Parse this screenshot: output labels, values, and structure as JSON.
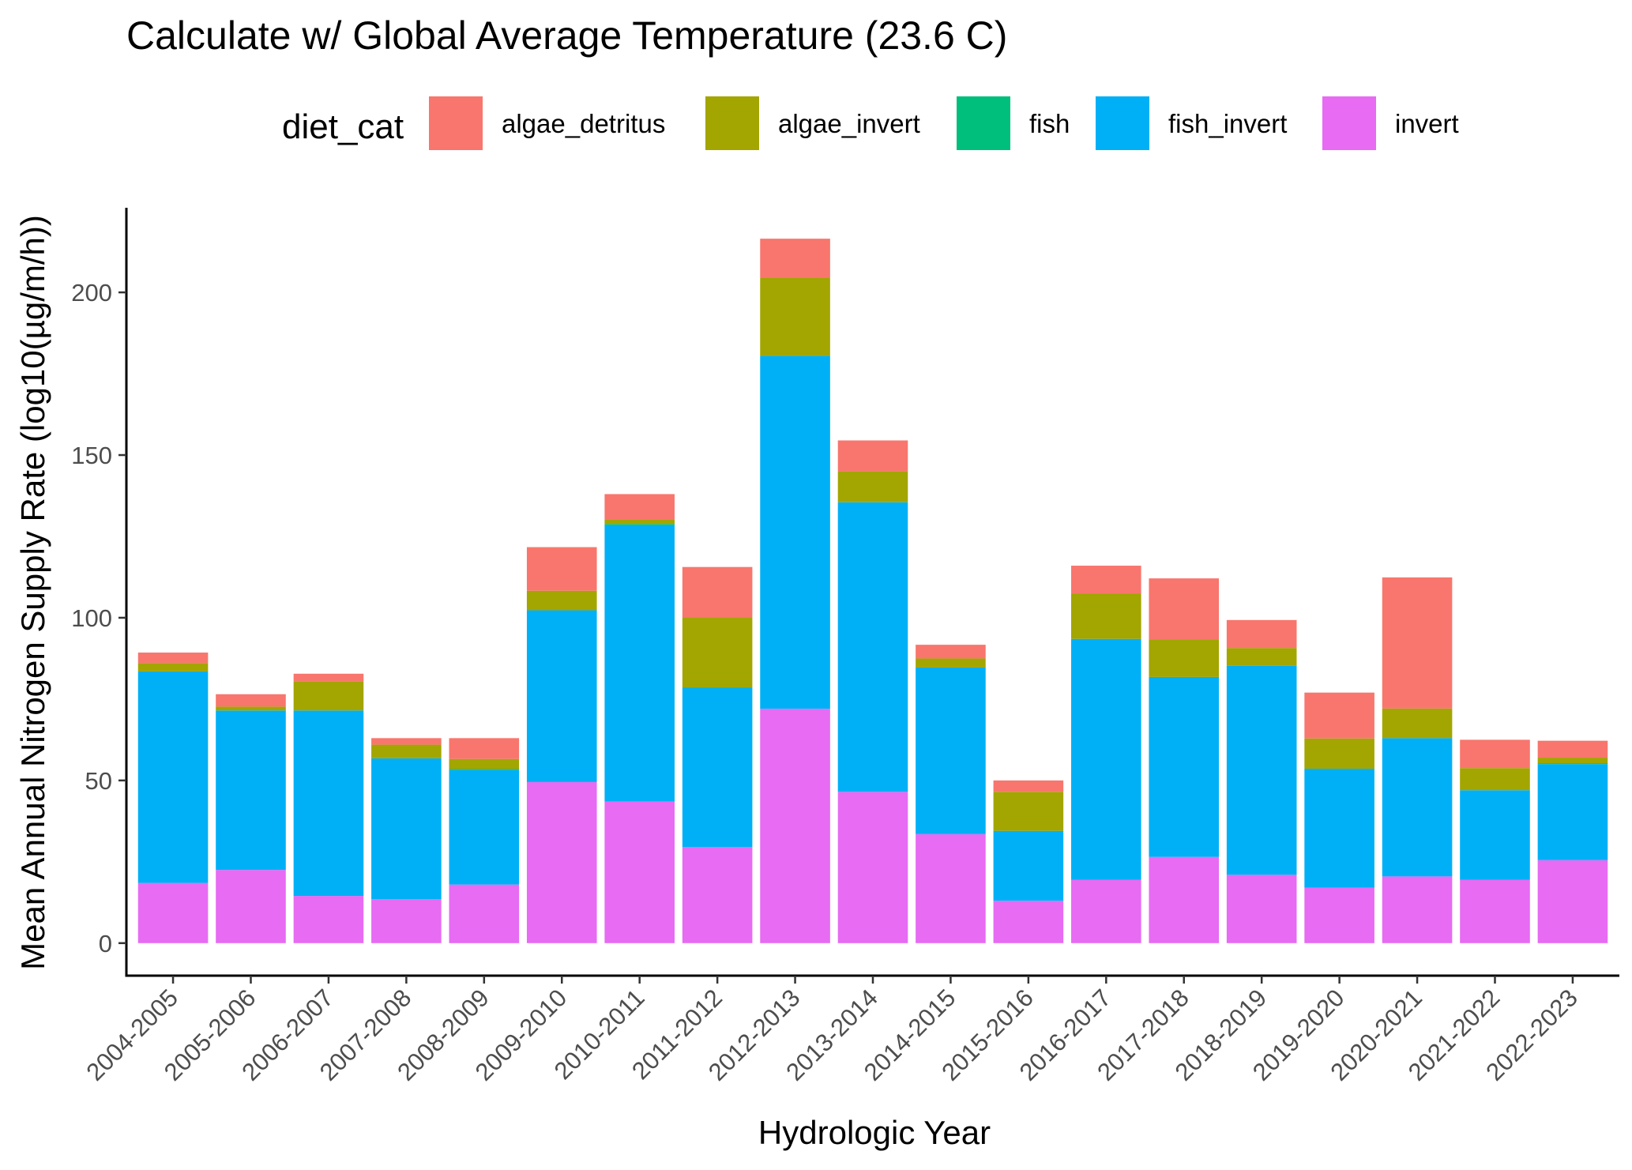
{
  "chart_data": {
    "type": "bar",
    "stacked": true,
    "title": "Calculate w/ Global Average Temperature (23.6 C)",
    "xlabel": "Hydrologic Year",
    "ylabel": "Mean Annual Nitrogen Supply Rate (log10(µg/m/h))",
    "legend_title": "diet_cat",
    "legend_position": "top",
    "grid": false,
    "ylim": [
      -10,
      226
    ],
    "y_ticks": [
      0,
      50,
      100,
      150,
      200
    ],
    "categories": [
      "2004-2005",
      "2005-2006",
      "2006-2007",
      "2007-2008",
      "2008-2009",
      "2009-2010",
      "2010-2011",
      "2011-2012",
      "2012-2013",
      "2013-2014",
      "2014-2015",
      "2015-2016",
      "2016-2017",
      "2017-2018",
      "2018-2019",
      "2019-2020",
      "2020-2021",
      "2021-2022",
      "2022-2023"
    ],
    "series": [
      {
        "name": "invert",
        "color": "#E76BF3",
        "values": [
          18.5,
          22.5,
          14.5,
          13.5,
          18,
          49.5,
          43.5,
          29.5,
          72,
          46.5,
          33.5,
          13,
          19.5,
          26.5,
          21,
          17,
          20.5,
          19.5,
          25.5
        ]
      },
      {
        "name": "fish_invert",
        "color": "#00B0F6",
        "values": [
          65,
          49,
          57,
          43.3,
          35.2,
          52.8,
          85,
          49,
          108.5,
          89,
          51.2,
          21.5,
          74,
          55.3,
          64.2,
          36.6,
          42.5,
          27.5,
          29.5
        ]
      },
      {
        "name": "fish",
        "color": "#00BF7D",
        "values": [
          0,
          0,
          0,
          0,
          0.3,
          0,
          0.3,
          0,
          0,
          0,
          0,
          0,
          0,
          0,
          0,
          0,
          0,
          0,
          0.3
        ]
      },
      {
        "name": "algae_invert",
        "color": "#A3A500",
        "values": [
          2.6,
          1.2,
          9,
          4.2,
          3.1,
          6,
          1.4,
          21.6,
          24,
          9.5,
          2.8,
          12,
          14,
          11.5,
          5.5,
          9.3,
          9.1,
          6.8,
          1.7
        ]
      },
      {
        "name": "algae_detritus",
        "color": "#F8766D",
        "values": [
          3.2,
          3.8,
          2.3,
          2,
          6.4,
          13.4,
          7.8,
          15.5,
          12,
          9.5,
          4.2,
          3.5,
          8.5,
          18.8,
          8.6,
          14.1,
          40.3,
          8.7,
          5.2
        ]
      }
    ],
    "legend_order": [
      "algae_detritus",
      "algae_invert",
      "fish",
      "fish_invert",
      "invert"
    ]
  }
}
